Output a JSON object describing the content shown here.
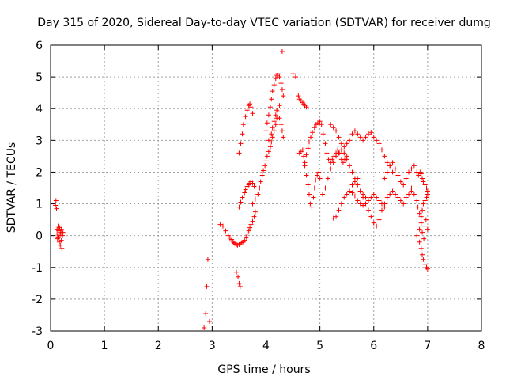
{
  "chart_data": {
    "type": "scatter",
    "title": "Day 315 of 2020, Sidereal Day-to-day VTEC variation (SDTVAR) for receiver dumg",
    "xlabel": "GPS time / hours",
    "ylabel": "SDTVAR / TECUs",
    "xlim": [
      0,
      8
    ],
    "ylim": [
      -3,
      6
    ],
    "xticks": [
      "0",
      "1",
      "2",
      "3",
      "4",
      "5",
      "6",
      "7",
      "8"
    ],
    "yticks": [
      "-3",
      "-2",
      "-1",
      "0",
      "1",
      "2",
      "3",
      "4",
      "5",
      "6"
    ],
    "grid": true,
    "marker": "+",
    "color": "#ff0000",
    "series": [
      {
        "name": "SDTVAR",
        "x": [
          0.09,
          0.1,
          0.11,
          0.12,
          0.12,
          0.13,
          0.14,
          0.14,
          0.15,
          0.16,
          0.16,
          0.17,
          0.18,
          0.18,
          0.19,
          0.2,
          0.2,
          0.21,
          0.22,
          0.23,
          2.85,
          2.88,
          2.9,
          2.92,
          2.95,
          3.15,
          3.2,
          3.25,
          3.3,
          3.33,
          3.36,
          3.38,
          3.4,
          3.42,
          3.45,
          3.47,
          3.5,
          3.52,
          3.55,
          3.58,
          3.6,
          3.63,
          3.65,
          3.68,
          3.7,
          3.72,
          3.75,
          3.78,
          3.8,
          3.45,
          3.48,
          3.5,
          3.52,
          3.5,
          3.53,
          3.56,
          3.6,
          3.62,
          3.65,
          3.68,
          3.7,
          3.72,
          3.75,
          3.78,
          3.5,
          3.53,
          3.56,
          3.58,
          3.62,
          3.65,
          3.68,
          3.7,
          3.72,
          3.75,
          3.75,
          3.8,
          3.85,
          3.88,
          3.9,
          3.93,
          3.95,
          3.98,
          4.0,
          4.02,
          4.05,
          4.08,
          4.1,
          4.12,
          4.15,
          4.18,
          4.2,
          4.22,
          4.25,
          4.0,
          4.02,
          4.05,
          4.08,
          4.1,
          4.12,
          4.15,
          4.18,
          4.2,
          4.22,
          4.25,
          4.28,
          4.3,
          4.32,
          4.05,
          4.1,
          4.12,
          4.15,
          4.18,
          4.2,
          4.25,
          4.28,
          4.3,
          4.32,
          4.3,
          4.5,
          4.55,
          4.6,
          4.62,
          4.65,
          4.68,
          4.7,
          4.72,
          4.75,
          4.62,
          4.65,
          4.68,
          4.7,
          4.72,
          4.75,
          4.78,
          4.8,
          4.82,
          4.85,
          4.88,
          4.9,
          4.92,
          4.95,
          4.98,
          5.0,
          4.72,
          4.75,
          4.78,
          4.8,
          4.83,
          4.86,
          4.9,
          4.93,
          4.96,
          5.0,
          5.03,
          5.06,
          5.1,
          5.13,
          5.16,
          5.2,
          5.23,
          5.26,
          5.3,
          5.33,
          5.36,
          5.4,
          5.43,
          5.46,
          5.5,
          5.05,
          5.1,
          5.15,
          5.2,
          5.25,
          5.3,
          5.35,
          5.4,
          5.45,
          5.5,
          5.55,
          5.6,
          5.65,
          5.7,
          5.75,
          5.8,
          5.85,
          5.9,
          5.25,
          5.3,
          5.35,
          5.4,
          5.45,
          5.5,
          5.55,
          5.6,
          5.65,
          5.7,
          5.75,
          5.8,
          5.85,
          5.9,
          5.95,
          6.0,
          6.05,
          6.1,
          6.15,
          6.2,
          5.2,
          5.25,
          5.3,
          5.35,
          5.4,
          5.45,
          5.5,
          5.55,
          5.6,
          5.65,
          5.7,
          5.75,
          5.8,
          5.85,
          5.9,
          5.95,
          6.0,
          6.05,
          6.1,
          6.15,
          6.2,
          6.25,
          6.3,
          6.35,
          5.6,
          5.65,
          5.7,
          5.75,
          5.8,
          5.85,
          5.9,
          5.95,
          6.0,
          6.05,
          6.1,
          6.15,
          6.2,
          6.25,
          6.3,
          6.35,
          6.4,
          6.45,
          6.5,
          6.55,
          6.6,
          6.65,
          6.7,
          6.2,
          6.25,
          6.3,
          6.35,
          6.4,
          6.45,
          6.5,
          6.55,
          6.6,
          6.65,
          6.7,
          6.75,
          6.8,
          6.83,
          6.86,
          6.88,
          6.9,
          6.92,
          6.95,
          6.98,
          7.0,
          6.7,
          6.75,
          6.8,
          6.82,
          6.85,
          6.88,
          6.9,
          6.92,
          6.95,
          6.98,
          7.0,
          6.8,
          6.85,
          6.88,
          6.9,
          6.92,
          6.95,
          6.98,
          7.0,
          6.85,
          6.88,
          6.9,
          6.93,
          6.95,
          6.97,
          7.0
        ],
        "y": [
          0.95,
          1.1,
          0.85,
          0.2,
          0.05,
          -0.1,
          0.3,
          -0.05,
          0.15,
          0.0,
          -0.2,
          0.25,
          0.1,
          -0.3,
          0.05,
          -0.15,
          0.2,
          -0.4,
          0.0,
          0.1,
          -2.9,
          -2.45,
          -1.6,
          -0.75,
          -2.7,
          0.35,
          0.3,
          0.15,
          0.0,
          -0.08,
          -0.12,
          -0.18,
          -0.22,
          -0.25,
          -0.28,
          -0.3,
          -0.28,
          -0.25,
          -0.22,
          -0.2,
          -0.15,
          -0.05,
          0.05,
          0.15,
          0.25,
          0.35,
          0.45,
          0.6,
          0.75,
          -1.15,
          -1.3,
          -1.5,
          -1.6,
          0.9,
          1.05,
          1.2,
          1.35,
          1.45,
          1.55,
          1.6,
          1.65,
          1.7,
          1.65,
          1.55,
          2.6,
          2.9,
          3.2,
          3.5,
          3.75,
          3.95,
          4.1,
          4.15,
          4.05,
          3.85,
          1.0,
          1.15,
          1.3,
          1.5,
          1.7,
          1.9,
          2.05,
          2.2,
          2.35,
          2.5,
          2.65,
          2.8,
          2.95,
          3.1,
          3.3,
          3.5,
          3.7,
          3.9,
          4.1,
          3.3,
          3.55,
          3.8,
          4.05,
          4.3,
          4.55,
          4.75,
          4.95,
          5.05,
          5.1,
          5.0,
          4.8,
          4.6,
          4.4,
          3.0,
          3.2,
          3.4,
          3.6,
          3.8,
          3.95,
          3.7,
          3.5,
          3.3,
          3.1,
          5.8,
          5.1,
          5.0,
          4.4,
          4.3,
          4.25,
          4.2,
          4.15,
          4.1,
          4.05,
          2.6,
          2.65,
          2.7,
          2.5,
          2.2,
          1.9,
          1.6,
          1.3,
          1.0,
          0.9,
          1.2,
          1.5,
          1.75,
          1.9,
          2.0,
          1.8,
          2.3,
          2.55,
          2.75,
          2.95,
          3.1,
          3.25,
          3.4,
          3.5,
          3.55,
          3.6,
          3.5,
          3.2,
          2.9,
          2.6,
          2.4,
          2.3,
          2.4,
          2.5,
          2.6,
          2.7,
          2.6,
          2.4,
          2.3,
          2.4,
          2.5,
          1.3,
          1.5,
          1.8,
          2.1,
          2.3,
          2.5,
          2.6,
          2.7,
          2.6,
          2.4,
          2.2,
          2.0,
          1.8,
          1.6,
          1.4,
          1.3,
          1.2,
          1.1,
          0.55,
          0.6,
          0.8,
          1.0,
          1.2,
          1.3,
          1.4,
          1.35,
          1.25,
          1.1,
          1.0,
          0.95,
          1.0,
          1.1,
          1.2,
          1.3,
          1.2,
          1.1,
          1.0,
          0.9,
          3.5,
          3.4,
          3.3,
          3.1,
          2.9,
          2.8,
          2.9,
          3.0,
          3.2,
          3.3,
          3.2,
          3.1,
          3.0,
          3.1,
          3.2,
          3.25,
          3.1,
          3.0,
          2.9,
          2.7,
          2.5,
          2.3,
          2.2,
          2.0,
          1.6,
          1.7,
          1.8,
          1.4,
          1.2,
          1.0,
          0.8,
          0.6,
          0.4,
          0.3,
          0.5,
          0.8,
          1.0,
          1.2,
          1.3,
          1.4,
          1.3,
          1.2,
          1.1,
          1.0,
          1.2,
          1.3,
          1.4,
          1.8,
          2.0,
          2.2,
          2.3,
          2.1,
          1.9,
          1.7,
          1.6,
          1.8,
          2.0,
          2.1,
          2.2,
          2.0,
          1.9,
          2.0,
          1.95,
          1.8,
          1.7,
          1.6,
          1.5,
          1.4,
          1.5,
          1.3,
          1.1,
          0.9,
          0.7,
          0.6,
          0.8,
          1.0,
          1.1,
          1.2,
          1.3,
          0.0,
          -0.2,
          -0.4,
          -0.6,
          -0.75,
          -0.9,
          -1.0,
          -1.05,
          0.2,
          0.4,
          0.1,
          -0.1,
          0.3,
          0.5,
          0.2
        ]
      }
    ]
  }
}
